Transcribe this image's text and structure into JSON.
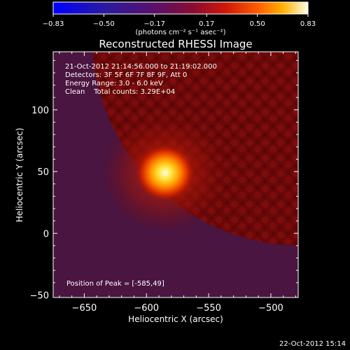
{
  "chart_data": {
    "type": "heatmap",
    "title": "Reconstructed RHESSI Image",
    "xlabel": "Heliocentric X (arcsec)",
    "ylabel": "Heliocentric Y (arcsec)",
    "xlim": [
      -675,
      -478
    ],
    "ylim": [
      -52,
      147
    ],
    "x_ticks": [
      -650,
      -600,
      -550,
      -500
    ],
    "y_ticks": [
      0,
      50,
      100
    ],
    "x_tick_labels": [
      "−650",
      "−600",
      "−550",
      "−500"
    ],
    "y_tick_labels": [
      "0",
      "50",
      "100"
    ],
    "y_edge_labels": [
      {
        "value": -50,
        "label": "−50"
      }
    ],
    "colorbar": {
      "range": [
        -0.83,
        0.83
      ],
      "ticks": [
        -0.83,
        -0.5,
        -0.17,
        0.17,
        0.5,
        0.83
      ],
      "tick_labels": [
        "−0.83",
        "−0.50",
        "−0.17",
        "0.17",
        "0.50",
        "0.83"
      ],
      "units_label": "(photons cm⁻² s⁻¹ asec⁻²)",
      "colors": [
        "#0000ff",
        "#3a1a8a",
        "#5a1060",
        "#a01018",
        "#ff2200",
        "#ffaa00",
        "#ffffff"
      ]
    },
    "annotations": [
      "21-Oct-2012 21:14:56.000 to 21:19:02.000",
      "Detectors: 3F 5F 6F 7F 8F 9F, Att 0",
      "Energy Range: 3.0 - 6.0 keV",
      "Clean    Total counts: 3.29E+04"
    ],
    "peak_label": "Position of Peak = [-585,49]",
    "peak": {
      "x": -585,
      "y": 49
    },
    "source_limb_center": {
      "x": -475,
      "y": 160
    },
    "background_color": "#4a1540",
    "disk_color": "#6a0808"
  },
  "footer": {
    "timestamp": "22-Oct-2012 15:14"
  }
}
